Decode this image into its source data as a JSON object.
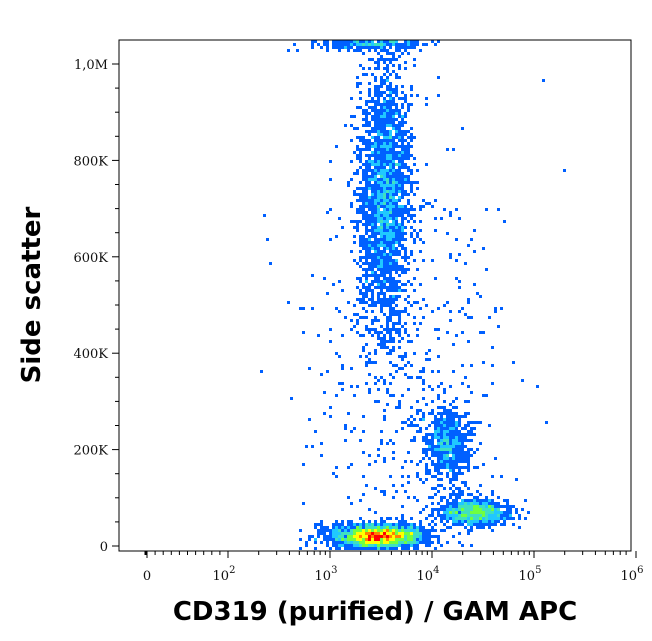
{
  "chart_data": {
    "type": "scatter",
    "subtype": "flow-cytometry-density-dot-plot",
    "xlabel": "CD319 (purified) / GAM APC",
    "ylabel": "Side scatter",
    "x_scale": "biexponential",
    "y_scale": "linear",
    "xlim": [
      -50,
      1200000
    ],
    "ylim": [
      -10000,
      1050000
    ],
    "x_ticks": [
      {
        "value": 0,
        "base": "0",
        "exp": ""
      },
      {
        "value": 100,
        "base": "10",
        "exp": "2"
      },
      {
        "value": 1000,
        "base": "10",
        "exp": "3"
      },
      {
        "value": 10000,
        "base": "10",
        "exp": "4"
      },
      {
        "value": 100000,
        "base": "10",
        "exp": "5"
      },
      {
        "value": 1000000,
        "base": "10",
        "exp": "6"
      }
    ],
    "y_ticks": [
      {
        "value": 0,
        "label": "0"
      },
      {
        "value": 200000,
        "label": "200K"
      },
      {
        "value": 400000,
        "label": "400K"
      },
      {
        "value": 600000,
        "label": "600K"
      },
      {
        "value": 800000,
        "label": "800K"
      },
      {
        "value": 1000000,
        "label": "1,0M"
      }
    ],
    "grid": false,
    "legend": "none",
    "density_colors": [
      "#0000cc",
      "#0060ff",
      "#20c8ff",
      "#40e0c0",
      "#70ff40",
      "#ffff00",
      "#ff8000",
      "#ff0000"
    ],
    "populations": [
      {
        "center_x": 3500,
        "center_y": 730000,
        "spread_log_x": 0.13,
        "spread_y": 140000,
        "count": 2600
      },
      {
        "center_x": 14000,
        "center_y": 210000,
        "spread_log_x": 0.11,
        "spread_y": 40000,
        "count": 700
      },
      {
        "center_x": 3000,
        "center_y": 20000,
        "spread_log_x": 0.22,
        "spread_y": 12000,
        "count": 3000
      },
      {
        "center_x": 26000,
        "center_y": 70000,
        "spread_log_x": 0.16,
        "spread_y": 13000,
        "count": 1100
      },
      {
        "center_x": 2500,
        "center_y": 1040000,
        "spread_log_x": 0.25,
        "spread_y": 6000,
        "count": 250
      },
      {
        "center_x": 5000,
        "center_y": 350000,
        "spread_log_x": 0.5,
        "spread_y": 250000,
        "count": 500
      }
    ]
  }
}
